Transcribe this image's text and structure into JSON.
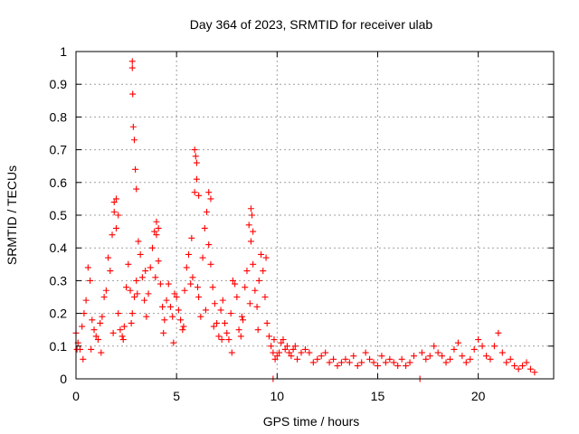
{
  "chart_data": {
    "type": "scatter",
    "title": "Day 364 of 2023, SRMTID for receiver ulab",
    "xlabel": "GPS time / hours",
    "ylabel": "SRMTID / TECUs",
    "xlim": [
      0,
      23.75
    ],
    "ylim": [
      0,
      1
    ],
    "xticks": [
      0,
      5,
      10,
      15,
      20
    ],
    "yticks": [
      0,
      0.1,
      0.2,
      0.3,
      0.4,
      0.5,
      0.6,
      0.7,
      0.8,
      0.9,
      1
    ],
    "xtick_labels": [
      "0",
      "5",
      "10",
      "15",
      "20"
    ],
    "ytick_labels": [
      "0",
      "0.1",
      "0.2",
      "0.3",
      "0.4",
      "0.5",
      "0.6",
      "0.7",
      "0.8",
      "0.9",
      "1"
    ],
    "grid": true,
    "marker": "+",
    "color": "#ff0000",
    "series": [
      {
        "name": "SRMTID",
        "x": [
          0.0,
          0.1,
          0.2,
          0.3,
          0.4,
          0.5,
          0.6,
          0.7,
          0.8,
          0.9,
          1.0,
          1.1,
          1.2,
          1.3,
          1.4,
          1.5,
          1.6,
          1.7,
          1.8,
          1.9,
          2.0,
          2.1,
          2.2,
          2.3,
          2.4,
          2.5,
          2.6,
          2.7,
          2.8,
          2.9,
          3.0,
          3.1,
          3.2,
          3.3,
          3.4,
          3.5,
          3.6,
          3.7,
          3.8,
          3.9,
          4.0,
          4.1,
          4.2,
          4.3,
          4.4,
          4.5,
          4.6,
          4.7,
          4.8,
          4.9,
          5.0,
          5.1,
          5.2,
          5.3,
          5.4,
          5.5,
          5.6,
          5.7,
          5.8,
          5.9,
          6.0,
          6.1,
          6.2,
          6.3,
          6.4,
          6.5,
          6.6,
          6.7,
          6.8,
          6.9,
          7.0,
          7.1,
          7.2,
          7.3,
          7.4,
          7.5,
          7.6,
          7.7,
          7.8,
          7.9,
          8.0,
          8.1,
          8.2,
          8.3,
          8.4,
          8.5,
          8.6,
          8.7,
          8.8,
          8.9,
          9.0,
          9.1,
          9.2,
          9.3,
          9.4,
          9.5,
          9.6,
          9.7,
          9.8,
          9.9,
          10.0,
          10.1,
          10.2,
          10.3,
          10.4,
          10.5,
          10.6,
          10.7,
          10.8,
          10.9,
          11.0,
          11.2,
          11.4,
          11.6,
          11.8,
          12.0,
          12.2,
          12.4,
          12.6,
          12.8,
          13.0,
          13.2,
          13.4,
          13.6,
          13.8,
          14.0,
          14.2,
          14.4,
          14.6,
          14.8,
          15.0,
          15.2,
          15.4,
          15.6,
          15.8,
          16.0,
          16.2,
          16.4,
          16.6,
          16.8,
          17.2,
          17.4,
          17.6,
          17.8,
          18.0,
          18.2,
          18.4,
          18.6,
          18.8,
          19.0,
          19.2,
          19.4,
          19.6,
          19.8,
          20.0,
          20.2,
          20.4,
          20.6,
          20.8,
          21.0,
          21.2,
          21.4,
          21.6,
          21.8,
          22.0,
          22.2,
          22.4,
          22.6,
          22.8,
          0.05,
          0.35,
          0.75,
          1.25,
          1.85,
          2.35,
          2.75,
          3.05,
          3.45,
          3.95,
          4.35,
          4.85,
          5.35,
          5.75,
          6.05,
          6.45,
          6.85,
          7.25,
          7.75,
          8.25,
          8.65,
          9.05,
          9.45,
          9.85,
          2.8,
          2.8,
          2.82,
          2.85,
          2.9,
          2.95,
          3.0,
          5.9,
          5.95,
          6.0,
          6.1,
          6.6,
          6.7,
          8.7,
          8.75,
          8.8,
          1.9,
          2.0,
          2.1,
          4.0,
          4.1,
          9.8,
          17.1
        ],
        "y": [
          0.14,
          0.11,
          0.09,
          0.16,
          0.2,
          0.24,
          0.34,
          0.3,
          0.18,
          0.15,
          0.13,
          0.12,
          0.17,
          0.19,
          0.25,
          0.27,
          0.37,
          0.33,
          0.44,
          0.51,
          0.55,
          0.2,
          0.15,
          0.13,
          0.16,
          0.28,
          0.35,
          0.27,
          0.2,
          0.25,
          0.3,
          0.42,
          0.38,
          0.31,
          0.24,
          0.19,
          0.26,
          0.34,
          0.4,
          0.45,
          0.44,
          0.36,
          0.29,
          0.22,
          0.18,
          0.24,
          0.29,
          0.22,
          0.19,
          0.26,
          0.25,
          0.21,
          0.18,
          0.15,
          0.27,
          0.34,
          0.38,
          0.29,
          0.31,
          0.57,
          0.66,
          0.25,
          0.19,
          0.37,
          0.46,
          0.51,
          0.41,
          0.35,
          0.28,
          0.23,
          0.17,
          0.13,
          0.21,
          0.24,
          0.17,
          0.14,
          0.12,
          0.2,
          0.3,
          0.29,
          0.25,
          0.15,
          0.13,
          0.18,
          0.28,
          0.33,
          0.47,
          0.42,
          0.35,
          0.27,
          0.22,
          0.3,
          0.38,
          0.33,
          0.25,
          0.17,
          0.13,
          0.1,
          0.08,
          0.06,
          0.07,
          0.08,
          0.11,
          0.12,
          0.09,
          0.1,
          0.08,
          0.07,
          0.09,
          0.1,
          0.06,
          0.08,
          0.09,
          0.08,
          0.05,
          0.06,
          0.07,
          0.08,
          0.05,
          0.06,
          0.04,
          0.05,
          0.06,
          0.05,
          0.07,
          0.04,
          0.05,
          0.08,
          0.06,
          0.05,
          0.04,
          0.07,
          0.05,
          0.06,
          0.05,
          0.04,
          0.06,
          0.04,
          0.05,
          0.07,
          0.08,
          0.06,
          0.07,
          0.1,
          0.08,
          0.07,
          0.05,
          0.06,
          0.09,
          0.11,
          0.07,
          0.05,
          0.06,
          0.09,
          0.12,
          0.1,
          0.07,
          0.06,
          0.1,
          0.14,
          0.08,
          0.05,
          0.06,
          0.04,
          0.03,
          0.04,
          0.05,
          0.03,
          0.02,
          0.09,
          0.06,
          0.09,
          0.08,
          0.14,
          0.12,
          0.17,
          0.26,
          0.33,
          0.31,
          0.14,
          0.11,
          0.16,
          0.43,
          0.28,
          0.21,
          0.16,
          0.12,
          0.08,
          0.19,
          0.23,
          0.15,
          0.37,
          0.12,
          0.97,
          0.95,
          0.87,
          0.77,
          0.73,
          0.64,
          0.58,
          0.7,
          0.68,
          0.61,
          0.56,
          0.57,
          0.55,
          0.52,
          0.5,
          0.45,
          0.54,
          0.46,
          0.5,
          0.48,
          0.46,
          0.0,
          0.0
        ]
      }
    ]
  }
}
